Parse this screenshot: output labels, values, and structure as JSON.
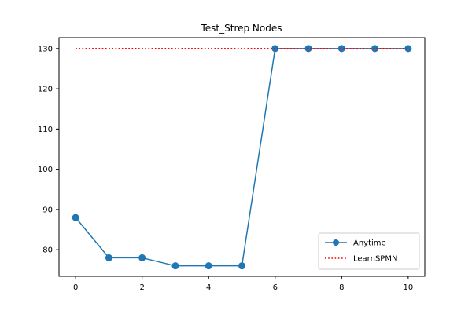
{
  "chart_data": {
    "type": "line",
    "title": "Test_Strep Nodes",
    "xlabel": "",
    "ylabel": "",
    "xlim": [
      -0.5,
      10.5
    ],
    "ylim": [
      73.4,
      132.7
    ],
    "x_ticks": [
      0,
      2,
      4,
      6,
      8,
      10
    ],
    "y_ticks": [
      80,
      90,
      100,
      110,
      120,
      130
    ],
    "grid": false,
    "legend_position": "lower-right",
    "series": [
      {
        "name": "Anytime",
        "style": "solid",
        "marker": "circle",
        "color": "#1f77b4",
        "x": [
          0,
          1,
          2,
          3,
          4,
          5,
          6,
          7,
          8,
          9,
          10
        ],
        "y": [
          88,
          78,
          78,
          76,
          76,
          76,
          130,
          130,
          130,
          130,
          130
        ]
      },
      {
        "name": "LearnSPMN",
        "style": "dotted",
        "marker": "none",
        "color": "#ff0000",
        "x": [
          0,
          1,
          2,
          3,
          4,
          5,
          6,
          7,
          8,
          9,
          10
        ],
        "y": [
          130,
          130,
          130,
          130,
          130,
          130,
          130,
          130,
          130,
          130,
          130
        ]
      }
    ]
  }
}
